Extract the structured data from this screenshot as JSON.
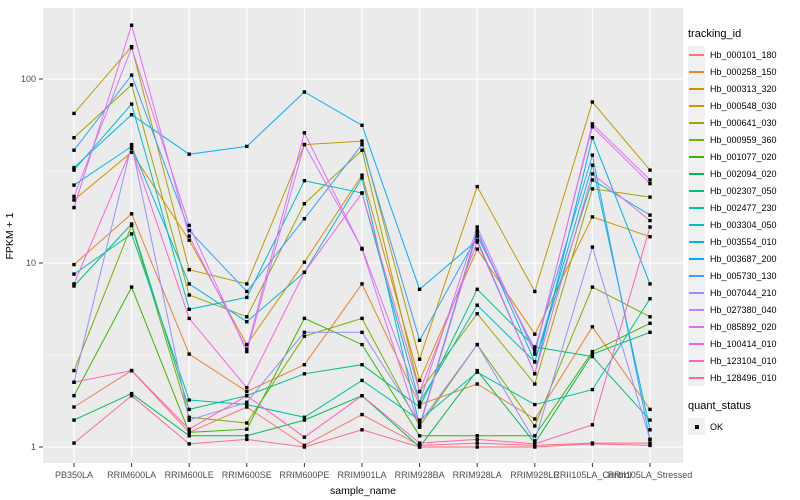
{
  "chart_data": {
    "type": "line",
    "title": "",
    "xlabel": "sample_name",
    "ylabel": "FPKM + 1",
    "y_scale": "log10",
    "y_ticks": [
      1,
      10,
      100
    ],
    "ylim": [
      0.95,
      250
    ],
    "grid": "major white on grey panel, log minor gridlines",
    "panel_bg": "#EBEBEB",
    "grid_color": "#FFFFFF",
    "tick_label_color": "#4D4D4D",
    "point_color": "#000000",
    "point_shape": "square",
    "legend_title": "tracking_id",
    "legend2_title": "quant_status",
    "legend2_items": [
      "OK"
    ],
    "legend_position": "right",
    "categories": [
      "PB350LA",
      "RRIM600LA",
      "RRIM600LE",
      "RRIM600SE",
      "RRIM600PE",
      "RRIM901LA",
      "RRIM928BA",
      "RRIM928LA",
      "RRIM928LE",
      "RRII105LA_Control",
      "RRII105LA_Stressed"
    ],
    "series": [
      {
        "name": "Hb_000101_180",
        "color": "#F8766D",
        "values": [
          1.65,
          2.6,
          1.2,
          1.65,
          1.02,
          1.5,
          1.02,
          1.05,
          1.02,
          1.05,
          1.05
        ]
      },
      {
        "name": "Hb_000258_150",
        "color": "#EA8331",
        "values": [
          9.8,
          18.5,
          3.2,
          2.0,
          2.8,
          7.7,
          1.7,
          2.2,
          1.42,
          4.5,
          1.6
        ]
      },
      {
        "name": "Hb_000313_320",
        "color": "#D89000",
        "values": [
          22,
          40,
          13.3,
          3.6,
          10.1,
          30,
          2.3,
          11.9,
          4.1,
          17.8,
          13.9
        ]
      },
      {
        "name": "Hb_000548_030",
        "color": "#C09B00",
        "values": [
          65,
          150,
          9.2,
          7.7,
          44,
          46,
          3.0,
          26,
          7.0,
          75,
          32
        ]
      },
      {
        "name": "Hb_000641_030",
        "color": "#A3A500",
        "values": [
          48,
          93,
          6.7,
          5.1,
          21,
          41,
          2.0,
          5.3,
          2.2,
          25.3,
          22.8
        ]
      },
      {
        "name": "Hb_000959_360",
        "color": "#7CAE00",
        "values": [
          2.6,
          16,
          1.45,
          1.35,
          4.0,
          5.0,
          1.3,
          3.6,
          1.3,
          7.4,
          5.1
        ]
      },
      {
        "name": "Hb_001077_020",
        "color": "#39B600",
        "values": [
          1.9,
          7.4,
          1.2,
          1.25,
          5.0,
          3.6,
          1.15,
          1.15,
          1.15,
          3.3,
          4.7
        ]
      },
      {
        "name": "Hb_002094_020",
        "color": "#00BB4E",
        "values": [
          1.4,
          1.95,
          1.15,
          1.15,
          1.4,
          1.9,
          1.0,
          2.6,
          1.05,
          3.2,
          4.2
        ]
      },
      {
        "name": "Hb_002307_050",
        "color": "#00BF7D",
        "values": [
          7.5,
          16.3,
          1.6,
          1.9,
          2.5,
          2.8,
          1.65,
          7.2,
          3.5,
          3.1,
          1.4
        ]
      },
      {
        "name": "Hb_002477_230",
        "color": "#00C1A3",
        "values": [
          8.7,
          14.4,
          1.8,
          1.7,
          1.45,
          2.3,
          1.4,
          2.55,
          1.7,
          2.05,
          6.4
        ]
      },
      {
        "name": "Hb_003304_050",
        "color": "#00BFC4",
        "values": [
          32,
          73,
          5.6,
          6.5,
          28,
          24,
          1.75,
          5.9,
          2.9,
          28.3,
          18.2
        ]
      },
      {
        "name": "Hb_003554_010",
        "color": "#00BAE0",
        "values": [
          26.5,
          43,
          7.7,
          4.8,
          8.9,
          29,
          1.3,
          15,
          2.9,
          34,
          1.24
        ]
      },
      {
        "name": "Hb_003687_200",
        "color": "#00B0F6",
        "values": [
          33,
          64,
          39,
          43,
          85,
          56,
          7.2,
          13.3,
          2.5,
          48,
          7.7
        ]
      },
      {
        "name": "Hb_005730_130",
        "color": "#35A2FF",
        "values": [
          41,
          105,
          15,
          7.0,
          17.4,
          44,
          3.8,
          14,
          3.4,
          38.6,
          1.1
        ]
      },
      {
        "name": "Hb_007044_210",
        "color": "#9590FF",
        "values": [
          2.25,
          44,
          1.4,
          1.75,
          4.2,
          4.2,
          1.35,
          3.6,
          1.08,
          12.2,
          1.1
        ]
      },
      {
        "name": "Hb_027380_040",
        "color": "#C77CFF",
        "values": [
          23,
          148,
          16,
          3.3,
          44,
          12,
          1.75,
          15.7,
          3.2,
          57,
          28.3
        ]
      },
      {
        "name": "Hb_085892_020",
        "color": "#E76BF3",
        "values": [
          20,
          196,
          14,
          3.4,
          51,
          11.9,
          1.28,
          14.5,
          3.3,
          55,
          27
        ]
      },
      {
        "name": "Hb_100414_010",
        "color": "#FA62DB",
        "values": [
          7.7,
          42,
          5.0,
          2.1,
          8.9,
          24,
          2.0,
          13,
          2.5,
          30.5,
          17
        ]
      },
      {
        "name": "Hb_123104_010",
        "color": "#FF62BC",
        "values": [
          2.25,
          2.6,
          1.25,
          1.9,
          1.13,
          1.9,
          1.05,
          1.1,
          1.04,
          1.32,
          15.7
        ]
      },
      {
        "name": "Hb_128496_010",
        "color": "#FF6A98",
        "values": [
          1.05,
          1.9,
          1.04,
          1.1,
          1.0,
          1.24,
          1.0,
          1.0,
          1.0,
          1.04,
          1.02
        ]
      }
    ]
  }
}
